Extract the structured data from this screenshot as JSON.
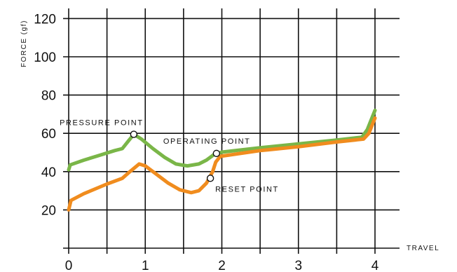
{
  "chart_data": {
    "type": "line",
    "title": "",
    "xlabel": "TRAVEL",
    "ylabel": "FORCE (gf)",
    "xlim": [
      0,
      4
    ],
    "ylim": [
      0,
      120
    ],
    "xticks": [
      0,
      1,
      2,
      3,
      4
    ],
    "yticks": [
      20,
      40,
      60,
      80,
      100,
      120
    ],
    "x_tick_labels": [
      "0",
      "1",
      "2",
      "3",
      "4"
    ],
    "y_tick_labels": [
      "20",
      "40",
      "60",
      "80",
      "100",
      "120"
    ],
    "grid": true,
    "series": [
      {
        "color": "#7ab648",
        "points": [
          [
            0.0,
            41
          ],
          [
            0.02,
            43.5
          ],
          [
            0.2,
            46
          ],
          [
            0.4,
            48.5
          ],
          [
            0.6,
            51
          ],
          [
            0.7,
            52
          ],
          [
            0.78,
            56
          ],
          [
            0.85,
            59.5
          ],
          [
            0.95,
            57
          ],
          [
            1.1,
            52
          ],
          [
            1.25,
            47.5
          ],
          [
            1.4,
            44
          ],
          [
            1.55,
            43
          ],
          [
            1.7,
            44
          ],
          [
            1.8,
            46
          ],
          [
            1.9,
            49
          ],
          [
            2.0,
            50.2
          ],
          [
            2.5,
            52.5
          ],
          [
            3.0,
            54.5
          ],
          [
            3.5,
            56.5
          ],
          [
            3.83,
            58
          ],
          [
            3.9,
            62
          ],
          [
            3.97,
            69
          ],
          [
            4.0,
            72
          ]
        ]
      },
      {
        "color": "#f08c1e",
        "points": [
          [
            0.0,
            20
          ],
          [
            0.03,
            25
          ],
          [
            0.2,
            28.5
          ],
          [
            0.5,
            33.5
          ],
          [
            0.7,
            36.5
          ],
          [
            0.8,
            40
          ],
          [
            0.92,
            44
          ],
          [
            1.0,
            43
          ],
          [
            1.15,
            38.5
          ],
          [
            1.3,
            34
          ],
          [
            1.45,
            30.5
          ],
          [
            1.6,
            29
          ],
          [
            1.7,
            30
          ],
          [
            1.8,
            34
          ],
          [
            1.88,
            40
          ],
          [
            1.92,
            45
          ],
          [
            1.98,
            48
          ],
          [
            2.5,
            51
          ],
          [
            3.0,
            53
          ],
          [
            3.5,
            55.5
          ],
          [
            3.85,
            57
          ],
          [
            3.92,
            60
          ],
          [
            3.98,
            66
          ],
          [
            4.0,
            68
          ]
        ]
      }
    ],
    "annotations": [
      {
        "label": "PRESSURE POINT",
        "x": 0.85,
        "y": 59.5
      },
      {
        "label": "OPERATING POINT",
        "x": 1.93,
        "y": 49.5
      },
      {
        "label": "RESET POINT",
        "x": 1.85,
        "y": 36.5
      }
    ]
  }
}
